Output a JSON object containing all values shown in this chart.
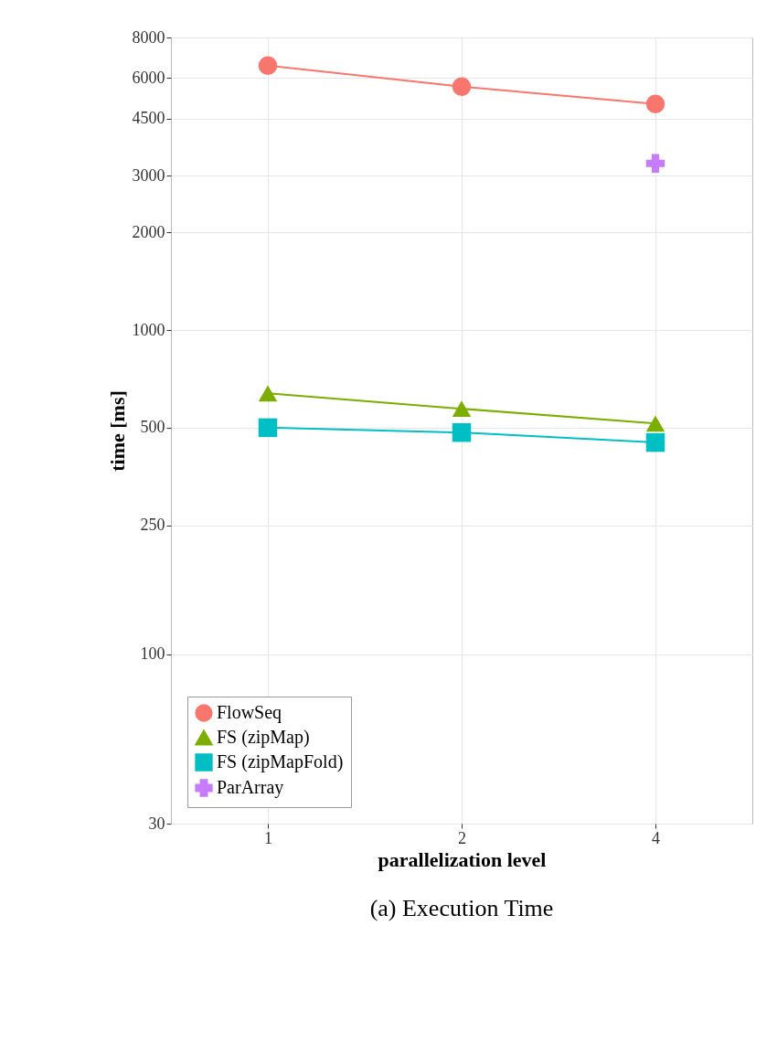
{
  "chart_data": {
    "type": "line",
    "xlabel": "parallelization level",
    "ylabel": "time [ms]",
    "categories": [
      "1",
      "2",
      "4"
    ],
    "series": [
      {
        "name": "FlowSeq",
        "color": "#f8766d",
        "marker": "circle",
        "values": [
          6550,
          5640,
          4990
        ]
      },
      {
        "name": "FS (zipMap)",
        "color": "#7cae00",
        "marker": "triangle",
        "values": [
          638,
          572,
          515
        ]
      },
      {
        "name": "FS (zipMapFold)",
        "color": "#00bfc4",
        "marker": "square",
        "values": [
          500,
          483,
          450
        ]
      },
      {
        "name": "ParArray",
        "color": "#c77cff",
        "marker": "cross",
        "values": [
          null,
          null,
          3270
        ]
      }
    ],
    "log": true,
    "ylim": [
      30,
      8000
    ],
    "yticks": [
      30,
      100,
      250,
      500,
      1000,
      2000,
      3000,
      4500,
      6000,
      8000
    ],
    "grid": true,
    "legend": "bottom left",
    "annotations": [
      "(a) Execution Time"
    ]
  }
}
